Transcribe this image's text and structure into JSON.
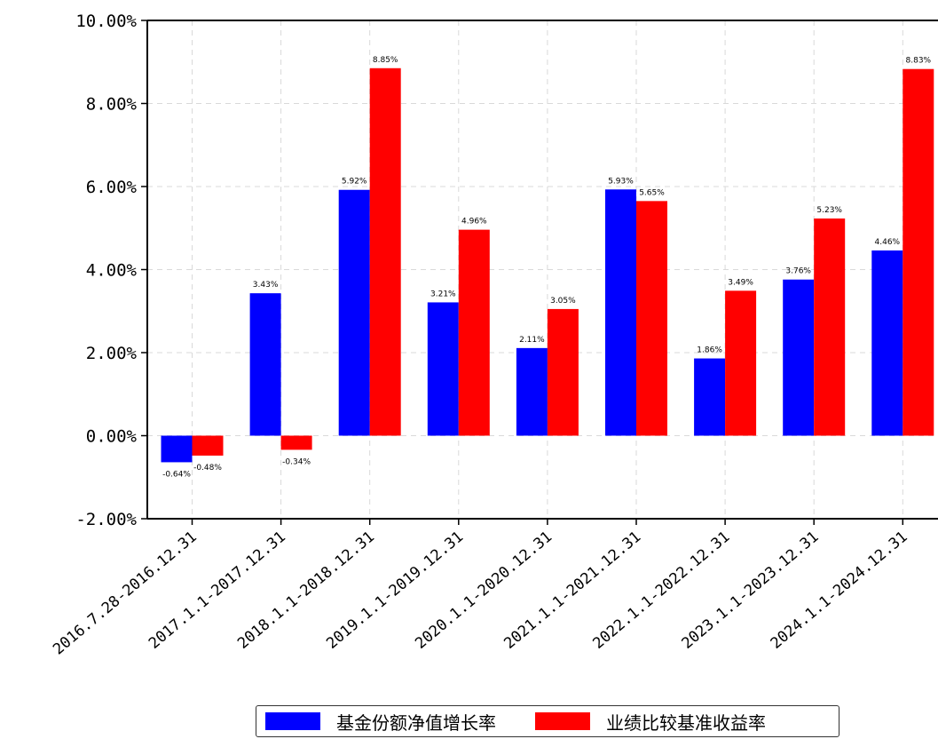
{
  "chart_data": {
    "type": "bar",
    "categories": [
      "2016.7.28-2016.12.31",
      "2017.1.1-2017.12.31",
      "2018.1.1-2018.12.31",
      "2019.1.1-2019.12.31",
      "2020.1.1-2020.12.31",
      "2021.1.1-2021.12.31",
      "2022.1.1-2022.12.31",
      "2023.1.1-2023.12.31",
      "2024.1.1-2024.12.31"
    ],
    "series": [
      {
        "name": "基金份额净值增长率",
        "color": "#0000ff",
        "values": [
          -0.64,
          3.43,
          5.92,
          3.21,
          2.11,
          5.93,
          1.86,
          3.76,
          4.46
        ],
        "labels": [
          "-0.64%",
          "3.43%",
          "5.92%",
          "3.21%",
          "2.11%",
          "5.93%",
          "1.86%",
          "3.76%",
          "4.46%"
        ]
      },
      {
        "name": "业绩比较基准收益率",
        "color": "#ff0000",
        "values": [
          -0.48,
          -0.34,
          8.85,
          4.96,
          3.05,
          5.65,
          3.49,
          5.23,
          8.83
        ],
        "labels": [
          "-0.48%",
          "-0.34%",
          "8.85%",
          "4.96%",
          "3.05%",
          "5.65%",
          "3.49%",
          "5.23%",
          "8.83%"
        ]
      }
    ],
    "yticks": [
      -2,
      0,
      2,
      4,
      6,
      8,
      10
    ],
    "ytick_labels": [
      "-2.00%",
      "0.00%",
      "2.00%",
      "4.00%",
      "6.00%",
      "8.00%",
      "10.00%"
    ],
    "ylim": [
      -2,
      10
    ],
    "grid": true,
    "legend_position": "bottom-center",
    "title": "",
    "xlabel": "",
    "ylabel": ""
  }
}
